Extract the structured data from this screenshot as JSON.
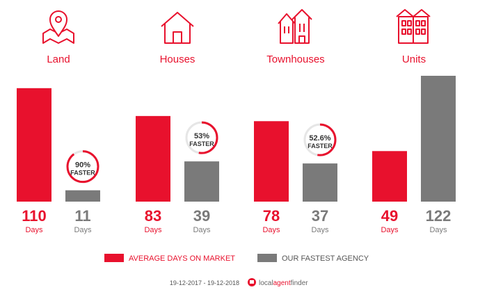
{
  "chart_data": {
    "type": "bar",
    "categories": [
      "Land",
      "Houses",
      "Townhouses",
      "Units"
    ],
    "series": [
      {
        "name": "AVERAGE DAYS ON MARKET",
        "values": [
          110,
          83,
          78,
          49
        ]
      },
      {
        "name": "OUR FASTEST AGENCY",
        "values": [
          11,
          39,
          37,
          122
        ]
      }
    ],
    "unit": "Days",
    "faster": [
      {
        "percent": "90%",
        "value": 0.9
      },
      {
        "percent": "53%",
        "value": 0.53
      },
      {
        "percent": "52.6%",
        "value": 0.526
      },
      null
    ],
    "faster_label": "FASTER",
    "ylim": [
      0,
      122
    ],
    "grid": false,
    "legend_position": "bottom"
  },
  "footer": {
    "date_range": "19-12-2017 - 19-12-2018",
    "brand_local": "local",
    "brand_agent": "agent",
    "brand_finder": "finder"
  },
  "colors": {
    "primary": "#e8112d",
    "secondary": "#7a7a7a",
    "ring_track": "#e6e6e6"
  },
  "icons": [
    "map-pin-icon",
    "house-icon",
    "townhouse-icon",
    "units-icon"
  ]
}
